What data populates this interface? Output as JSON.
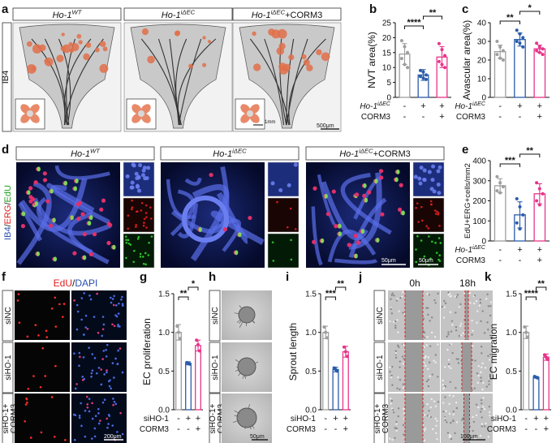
{
  "figure": {
    "panel_letters": [
      "a",
      "b",
      "c",
      "d",
      "e",
      "f",
      "g",
      "h",
      "i",
      "j",
      "k"
    ],
    "a": {
      "row_label": "IB4",
      "columns": [
        {
          "gene": "Ho-1",
          "sup": "WT",
          "suffix": ""
        },
        {
          "gene": "Ho-1",
          "sup": "iΔEC",
          "suffix": ""
        },
        {
          "gene": "Ho-1",
          "sup": "iΔEC",
          "suffix": "+CORM3"
        }
      ],
      "scale_main": "500μm",
      "scale_inset": "1mm"
    },
    "d": {
      "row_label_parts": [
        "IB4",
        "/",
        "ERG",
        "/",
        "EdU"
      ],
      "columns": [
        {
          "gene": "Ho-1",
          "sup": "WT",
          "suffix": ""
        },
        {
          "gene": "Ho-1",
          "sup": "iΔEC",
          "suffix": ""
        },
        {
          "gene": "Ho-1",
          "sup": "iΔEC",
          "suffix": "+CORM3"
        }
      ],
      "scale_main": "50μm",
      "scale_inset": "50μm"
    },
    "f": {
      "header_parts": [
        "EdU",
        "/",
        "DAPI"
      ],
      "rows": [
        "siNC",
        "siHO-1",
        "siHO-1+\nCORM3"
      ],
      "scale": "200μm"
    },
    "h": {
      "rows": [
        "siNC",
        "siHO-1",
        "siHO-1+\nCORM3"
      ],
      "scale": "50μm"
    },
    "j": {
      "headers": [
        "0h",
        "18h"
      ],
      "rows": [
        "siNC",
        "siHO-1",
        "siHO-1+\nCORM3"
      ],
      "scale": "100μm"
    },
    "mouse_conditions": {
      "row1_label": "Ho-1",
      "row1_sup": "iΔEC",
      "row1_values": [
        "-",
        "+",
        "+"
      ],
      "row2_label": "CORM3",
      "row2_values": [
        "-",
        "-",
        "+"
      ]
    },
    "cell_conditions": {
      "row1_label": "siHO-1",
      "row1_values": [
        "-",
        "+",
        "+"
      ],
      "row2_label": "CORM3",
      "row2_values": [
        "-",
        "-",
        "+"
      ]
    },
    "colors": {
      "ctrl": "#9e9e9e",
      "ko": "#2a5caa",
      "rescue": "#e8348a",
      "neovasc": "#e0704a",
      "red_label": "#e02020",
      "green_label": "#20a020",
      "blue_label": "#2a4fb0"
    }
  },
  "chart_data": [
    {
      "panel": "b",
      "type": "bar",
      "categories": [
        "WT",
        "iΔEC",
        "iΔEC+CORM3"
      ],
      "values": [
        14.5,
        7.5,
        13.5
      ],
      "errors": [
        3.5,
        1.8,
        3.5
      ],
      "points": [
        [
          19,
          17,
          15,
          13,
          11,
          10
        ],
        [
          9,
          8.5,
          7.5,
          7,
          6.5,
          6
        ],
        [
          18,
          16,
          14,
          12,
          11,
          10
        ]
      ],
      "ylabel": "NVT area(%)",
      "ylim": [
        0,
        25
      ],
      "yticks": [
        0,
        5,
        10,
        15,
        20,
        25
      ],
      "sig": [
        {
          "from": 0,
          "to": 1,
          "label": "****"
        },
        {
          "from": 1,
          "to": 2,
          "label": "**"
        }
      ]
    },
    {
      "panel": "c",
      "type": "bar",
      "categories": [
        "WT",
        "iΔEC",
        "iΔEC+CORM3"
      ],
      "values": [
        24.5,
        31,
        26
      ],
      "errors": [
        3.5,
        3.5,
        2
      ],
      "points": [
        [
          30,
          27,
          25,
          23,
          21,
          20
        ],
        [
          36,
          34,
          32,
          30,
          29,
          27
        ],
        [
          29,
          27,
          26,
          25,
          24,
          23
        ]
      ],
      "ylabel": "Avascular area(%)",
      "ylim": [
        0,
        40
      ],
      "yticks": [
        0,
        10,
        20,
        30,
        40
      ],
      "sig": [
        {
          "from": 0,
          "to": 1,
          "label": "**"
        },
        {
          "from": 1,
          "to": 2,
          "label": "*"
        }
      ]
    },
    {
      "panel": "e",
      "type": "bar",
      "categories": [
        "WT",
        "iΔEC",
        "iΔEC+CORM3"
      ],
      "values": [
        275,
        130,
        235
      ],
      "errors": [
        35,
        65,
        50
      ],
      "points": [
        [
          320,
          290,
          270,
          250,
          240
        ],
        [
          210,
          170,
          130,
          90,
          60
        ],
        [
          290,
          260,
          235,
          200,
          180
        ]
      ],
      "ylabel": "EdU+ERG+cells/mm2",
      "ylim": [
        0,
        400
      ],
      "yticks": [
        0,
        100,
        200,
        300,
        400
      ],
      "sig": [
        {
          "from": 0,
          "to": 1,
          "label": "***"
        },
        {
          "from": 1,
          "to": 2,
          "label": "**"
        }
      ]
    },
    {
      "panel": "g",
      "type": "bar",
      "categories": [
        "siNC",
        "siHO-1",
        "siHO-1+CORM3"
      ],
      "values": [
        1.0,
        0.6,
        0.83
      ],
      "errors": [
        0.1,
        0.02,
        0.07
      ],
      "points": [
        [
          1.08,
          1.0,
          0.92
        ],
        [
          0.61,
          0.6,
          0.59
        ],
        [
          0.9,
          0.84,
          0.76
        ]
      ],
      "ylabel": "EC proliferation",
      "ylim": [
        0,
        1.5
      ],
      "yticks": [
        0,
        0.5,
        1.0,
        1.5
      ],
      "sig": [
        {
          "from": 0,
          "to": 1,
          "label": "**"
        },
        {
          "from": 1,
          "to": 2,
          "label": "*"
        }
      ]
    },
    {
      "panel": "i",
      "type": "bar",
      "categories": [
        "siNC",
        "siHO-1",
        "siHO-1+CORM3"
      ],
      "values": [
        1.0,
        0.52,
        0.75
      ],
      "errors": [
        0.08,
        0.03,
        0.07
      ],
      "points": [
        [
          1.07,
          1.0,
          0.93
        ],
        [
          0.54,
          0.52,
          0.5
        ],
        [
          0.81,
          0.75,
          0.69
        ]
      ],
      "ylabel": "Sprout length",
      "ylim": [
        0,
        1.5
      ],
      "yticks": [
        0,
        0.5,
        1.0,
        1.5
      ],
      "sig": [
        {
          "from": 0,
          "to": 1,
          "label": "***"
        },
        {
          "from": 1,
          "to": 2,
          "label": "**"
        }
      ]
    },
    {
      "panel": "k",
      "type": "bar",
      "categories": [
        "siNC",
        "siHO-1",
        "siHO-1+CORM3"
      ],
      "values": [
        1.0,
        0.42,
        0.68
      ],
      "errors": [
        0.08,
        0.01,
        0.04
      ],
      "points": [
        [
          1.07,
          1.0,
          0.94
        ],
        [
          0.43,
          0.42,
          0.41
        ],
        [
          0.71,
          0.68,
          0.65
        ]
      ],
      "ylabel": "EC migration",
      "ylim": [
        0,
        1.5
      ],
      "yticks": [
        0,
        0.5,
        1.0,
        1.5
      ],
      "sig": [
        {
          "from": 0,
          "to": 1,
          "label": "****"
        },
        {
          "from": 1,
          "to": 2,
          "label": "**"
        }
      ]
    }
  ]
}
